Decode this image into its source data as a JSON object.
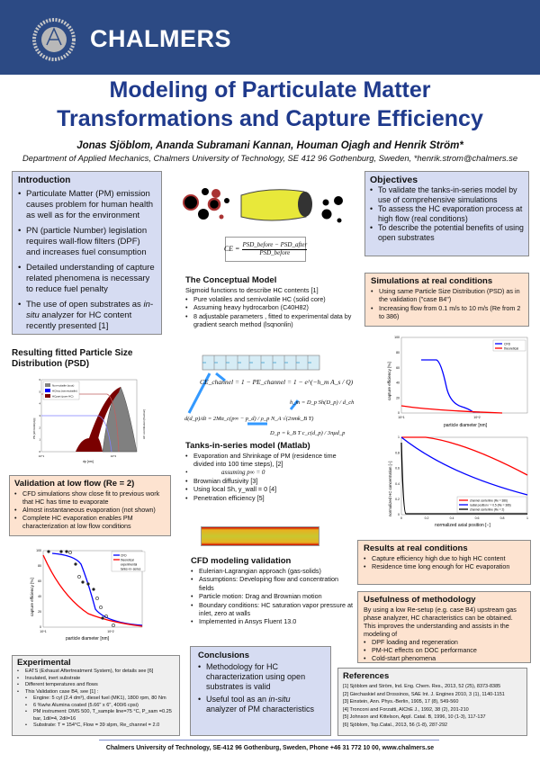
{
  "header": {
    "brand": "CHALMERS",
    "seal_icon": "chalmers-seal"
  },
  "title": {
    "line1": "Modeling of Particulate Matter",
    "line2": "Transformations and Capture Efficiency"
  },
  "authors": "Jonas Sjöblom, Ananda Subramani Kannan, Houman Ojagh and Henrik Ström*",
  "affiliation": "Department of Applied Mechanics, Chalmers University of Technology, SE 412 96 Gothenburg, Sweden,  *henrik.strom@chalmers.se",
  "introduction": {
    "heading": "Introduction",
    "items": [
      "Particulate Matter (PM) emission causes problem for human health as well as for the environment",
      "PN (particle Number) legislation requires wall-flow filters (DPF) and increases fuel consumption",
      "Detailed understanding of capture related phenomena is necessary to reduce fuel penalty"
    ],
    "last_pre": "The use of open substrates as ",
    "last_em": "in-situ",
    "last_post": " analyzer for HC content recently presented [1]"
  },
  "objectives": {
    "heading": "Objectives",
    "items": [
      "To validate the tanks-in-series model by use of comprehensive simulations",
      "To assess the HC evaporation process at high flow (real conditions)",
      "To describe the potential benefits of using open substrates"
    ]
  },
  "simulations": {
    "heading": "Simulations at real conditions",
    "items": [
      "Using same Particle Size Distribution (PSD) as in the validation (\"case B4\")",
      "Increasing flow from 0.1 m/s to 10 m/s (Re from 2 to 386)"
    ]
  },
  "ce_formula": {
    "lhs": "CE =",
    "num": "PSD_before − PSD_after",
    "den": "PSD_before"
  },
  "conceptual": {
    "heading": "The Conceptual Model",
    "intro": "Sigmoid functions to describe HC contents [1]",
    "items": [
      "Pure volatiles and semivolatile HC (solid core)",
      "Assuming heavy hydrocarbon (C40H82)",
      "8 adjustable parameters , fitted to experimental data by gradient search method (lsqnonlin)"
    ]
  },
  "psd": {
    "heading": "Resulting fitted Particle Size Distribution (PSD)",
    "legend": [
      "Non-volatile (soot)",
      "HCfrac (semivolatile)",
      "HCpart (pure HC)"
    ],
    "xlabel": "dp [nm]",
    "ylabel": "PN [#/cm3/ln(dp)]",
    "ylabel2": "HC contribution [fraction]",
    "yticks": [
      "0",
      "1",
      "2",
      "3",
      "4",
      "5",
      "6"
    ],
    "xticks": [
      "10^1",
      "10^2"
    ],
    "colors": {
      "soot": "#808080",
      "hcfrac": "#0000ff",
      "hcpart": "#7a0000"
    }
  },
  "validation": {
    "heading": "Validation at low flow (Re = 2)",
    "items": [
      "CFD simulations show close fit to previous work that HC has time to evaporate",
      "Almost instantaneous evaporation (not shown)",
      "Complete HC evaporation enables PM characterization at low flow conditions"
    ]
  },
  "tanks": {
    "heading": "Tanks-in-series model (Matlab)",
    "items": [
      "Evaporation and Shrinkage of PM (residence time divided into 100 time steps), [2]",
      "Brownian diffusivity [3]",
      "Using local Sh, y_wall = 0 [4]",
      "Penetration efficiency [5]"
    ],
    "assuming": "assuming p∞ = 0",
    "eq1": "CE_channel = 1 − PE_channel = 1 − e^(−h_m A_s / Q)",
    "eq2": "h_m = D_p Sh(D_p) / d_ch",
    "eq3": "d(d_p)/dt = 2Mα_c(p∞ − p_d) / ρ_p N_A √(2πmk_B T)",
    "eq4": "D_p = k_B T c_c(d_p) / 3πμd_p"
  },
  "chart_ce_real": {
    "legend": [
      "CFD",
      "theoretical"
    ],
    "ylabel": "capture efficiency [%]",
    "xlabel": "particle diameter [nm]",
    "yticks": [
      "0",
      "20",
      "40",
      "60",
      "80",
      "100"
    ],
    "xticks": [
      "10^1",
      "10^2"
    ]
  },
  "chart_hc": {
    "legend": [
      "channel centerline (Re = 386)",
      "radial position r = 0.5 (Re = 386)",
      "channel centerline (Re = 2)"
    ],
    "ylabel": "normalized HC concentration [−]",
    "xlabel": "normalized axial position [−]",
    "yticks": [
      "0",
      "0.2",
      "0.4",
      "0.6",
      "0.8",
      "1"
    ],
    "xticks": [
      "0",
      "0.2",
      "0.4",
      "0.6",
      "0.8",
      "1"
    ]
  },
  "chart_ce_low": {
    "legend": [
      "CFD",
      "theoretical",
      "experimental",
      "tanks−in−series"
    ],
    "ylabel": "capture efficiency [%]",
    "xlabel": "particle diameter [nm]",
    "yticks": [
      "0",
      "20",
      "40",
      "60",
      "80",
      "100"
    ],
    "xticks": [
      "10^1",
      "10^2"
    ]
  },
  "cfd": {
    "heading": "CFD modeling validation",
    "items": [
      "Eulerian-Lagrangian approach (gas-solids)",
      "Assumptions: Developing flow and concentration fields",
      "Particle motion: Drag and Brownian motion",
      "Boundary conditions: HC saturation vapor pressure at inlet, zero at walls",
      "Implemented in Ansys Fluent 13.0"
    ]
  },
  "results": {
    "heading": "Results at real conditions",
    "items": [
      "Capture efficiency high due to high HC content",
      "Residence time long enough for HC evaporation"
    ]
  },
  "usefulness": {
    "heading": "Usefulness of methodology",
    "text": "By using a low Re-setup (e.g. case B4) upstream gas phase analyzer, HC characteristics can be obtained. This improves the understanding and assists in the modeling of",
    "items": [
      "DPF loading and regeneration",
      "PM-HC effects on DOC performance",
      "Cold-start phenomena"
    ]
  },
  "experimental": {
    "heading": "Experimental",
    "items": [
      "EATS (Exhaust Aftertreatment System), for details see [6]",
      "Insulated, inert substrate",
      "Different temperatures and flows",
      "This Validation case B4, see [1] :"
    ],
    "sub": [
      "Engine: 5 cyl (2.4 dm³), diesel fuel (MK1), 1800 rpm,  80 Nm",
      "6 %w/w Alumina coated (5.66\" x 6\", 400/6 cpsi)",
      "PM instrument: DMS 500, T_sample line=75 °C, P_sam =0.25 bar, 1dil=4, 2dil=16",
      "Substrate: T = 154°C, Flow = 39 slpm, Re_channel = 2.0"
    ]
  },
  "conclusions": {
    "heading": "Conclusions",
    "item1": "Methodology for HC characterization using open substrates is valid",
    "item2_pre": "Useful tool as an ",
    "item2_em": "in-situ",
    "item2_post": " analyzer of PM characteristics"
  },
  "references": {
    "heading": "References",
    "items": [
      "[1] Sjöblom and Ström, Ind. Eng. Chem. Res., 2013, 52 (25), 8373-8385",
      "[2] Giechaskiel and Drossinos, SAE Int. J. Engines 2010, 3 (1), 1140-1151",
      "[3] Einstein, Ann. Phys.-Berlin, 1905, 17 (8), 549-560",
      "[4] Tronconi and Forzatti, AIChE J., 1992, 38 (2), 201-210",
      "[5] Johnson and Kittelson, Appl. Catal. B, 1996, 10 (1-3), 117-137",
      "[6] Sjöblom, Top.Catal., 2013, 56 (1-8), 287-292"
    ]
  },
  "footer": "Chalmers University of Technology, SE-412 96 Gothenburg, Sweden, Phone +46 31 772 10 00, www.chalmers.se",
  "colors": {
    "header": "#2c4a84",
    "title": "#1f3a8c",
    "box_blue": "#d6dcf2",
    "box_peach": "#fde3d0",
    "cfd": "#0000ff",
    "theoretical": "#ff0000"
  }
}
